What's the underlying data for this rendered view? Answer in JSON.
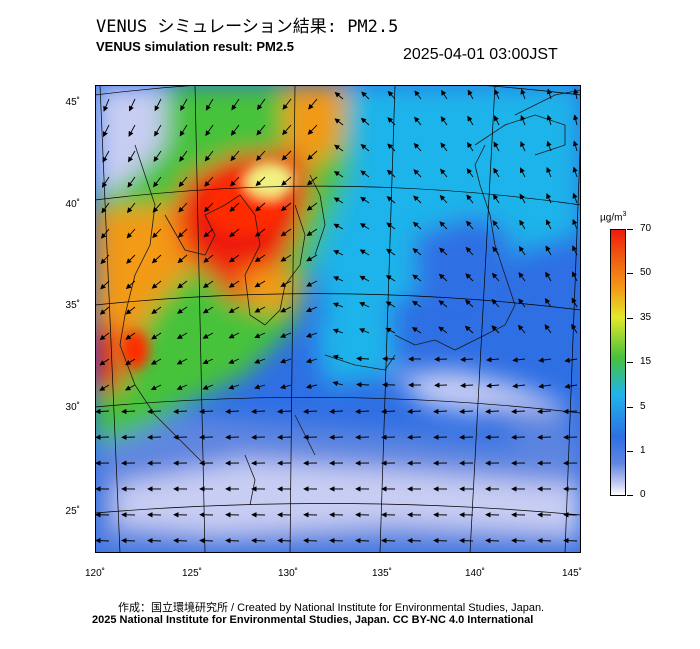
{
  "title_jp": "VENUS シミュレーション結果: PM2.5",
  "title_en": "VENUS simulation result: PM2.5",
  "datetime": "2025-04-01 03:00JST",
  "map": {
    "lat_labels": [
      "45˚",
      "40˚",
      "35˚",
      "30˚",
      "25˚"
    ],
    "lon_labels": [
      "120˚",
      "125˚",
      "130˚",
      "135˚",
      "140˚",
      "145˚"
    ],
    "colors": {
      "very_low": "#c8cdf3",
      "low_blue": "#5f86e0",
      "blue": "#2f6fe4",
      "cyan": "#1fb4ea",
      "green": "#47c23a",
      "yellow": "#e3e82a",
      "orange": "#f39a18",
      "red": "#ee1b0c",
      "coast": "#1a1a1a"
    }
  },
  "colorbar": {
    "unit": "µg/m",
    "unit_sup": "3",
    "tick_labels": [
      "70",
      "50",
      "35",
      "15",
      "5",
      "1",
      "0"
    ]
  },
  "credit_line1": "作成：国立環境研究所 / Created by National Institute for Environmental Studies, Japan.",
  "credit_line2": "2025 National Institute for Environmental Studies, Japan. CC BY-NC 4.0 International"
}
